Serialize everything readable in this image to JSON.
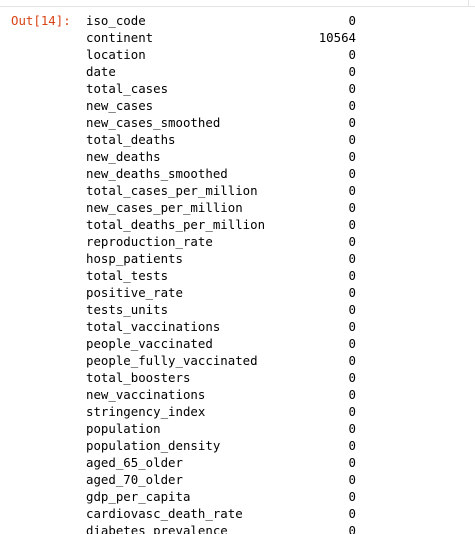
{
  "cell": {
    "prompt": "Out[14]:"
  },
  "rows": [
    {
      "label": "iso_code",
      "value": "0"
    },
    {
      "label": "continent",
      "value": "10564"
    },
    {
      "label": "location",
      "value": "0"
    },
    {
      "label": "date",
      "value": "0"
    },
    {
      "label": "total_cases",
      "value": "0"
    },
    {
      "label": "new_cases",
      "value": "0"
    },
    {
      "label": "new_cases_smoothed",
      "value": "0"
    },
    {
      "label": "total_deaths",
      "value": "0"
    },
    {
      "label": "new_deaths",
      "value": "0"
    },
    {
      "label": "new_deaths_smoothed",
      "value": "0"
    },
    {
      "label": "total_cases_per_million",
      "value": "0"
    },
    {
      "label": "new_cases_per_million",
      "value": "0"
    },
    {
      "label": "total_deaths_per_million",
      "value": "0"
    },
    {
      "label": "reproduction_rate",
      "value": "0"
    },
    {
      "label": "hosp_patients",
      "value": "0"
    },
    {
      "label": "total_tests",
      "value": "0"
    },
    {
      "label": "positive_rate",
      "value": "0"
    },
    {
      "label": "tests_units",
      "value": "0"
    },
    {
      "label": "total_vaccinations",
      "value": "0"
    },
    {
      "label": "people_vaccinated",
      "value": "0"
    },
    {
      "label": "people_fully_vaccinated",
      "value": "0"
    },
    {
      "label": "total_boosters",
      "value": "0"
    },
    {
      "label": "new_vaccinations",
      "value": "0"
    },
    {
      "label": "stringency_index",
      "value": "0"
    },
    {
      "label": "population",
      "value": "0"
    },
    {
      "label": "population_density",
      "value": "0"
    },
    {
      "label": "aged_65_older",
      "value": "0"
    },
    {
      "label": "aged_70_older",
      "value": "0"
    },
    {
      "label": "gdp_per_capita",
      "value": "0"
    },
    {
      "label": "cardiovasc_death_rate",
      "value": "0"
    },
    {
      "label": "diabetes_prevalence",
      "value": "0"
    }
  ],
  "colors": {
    "prompt": "#d84315",
    "text": "#000000",
    "background": "#ffffff"
  }
}
